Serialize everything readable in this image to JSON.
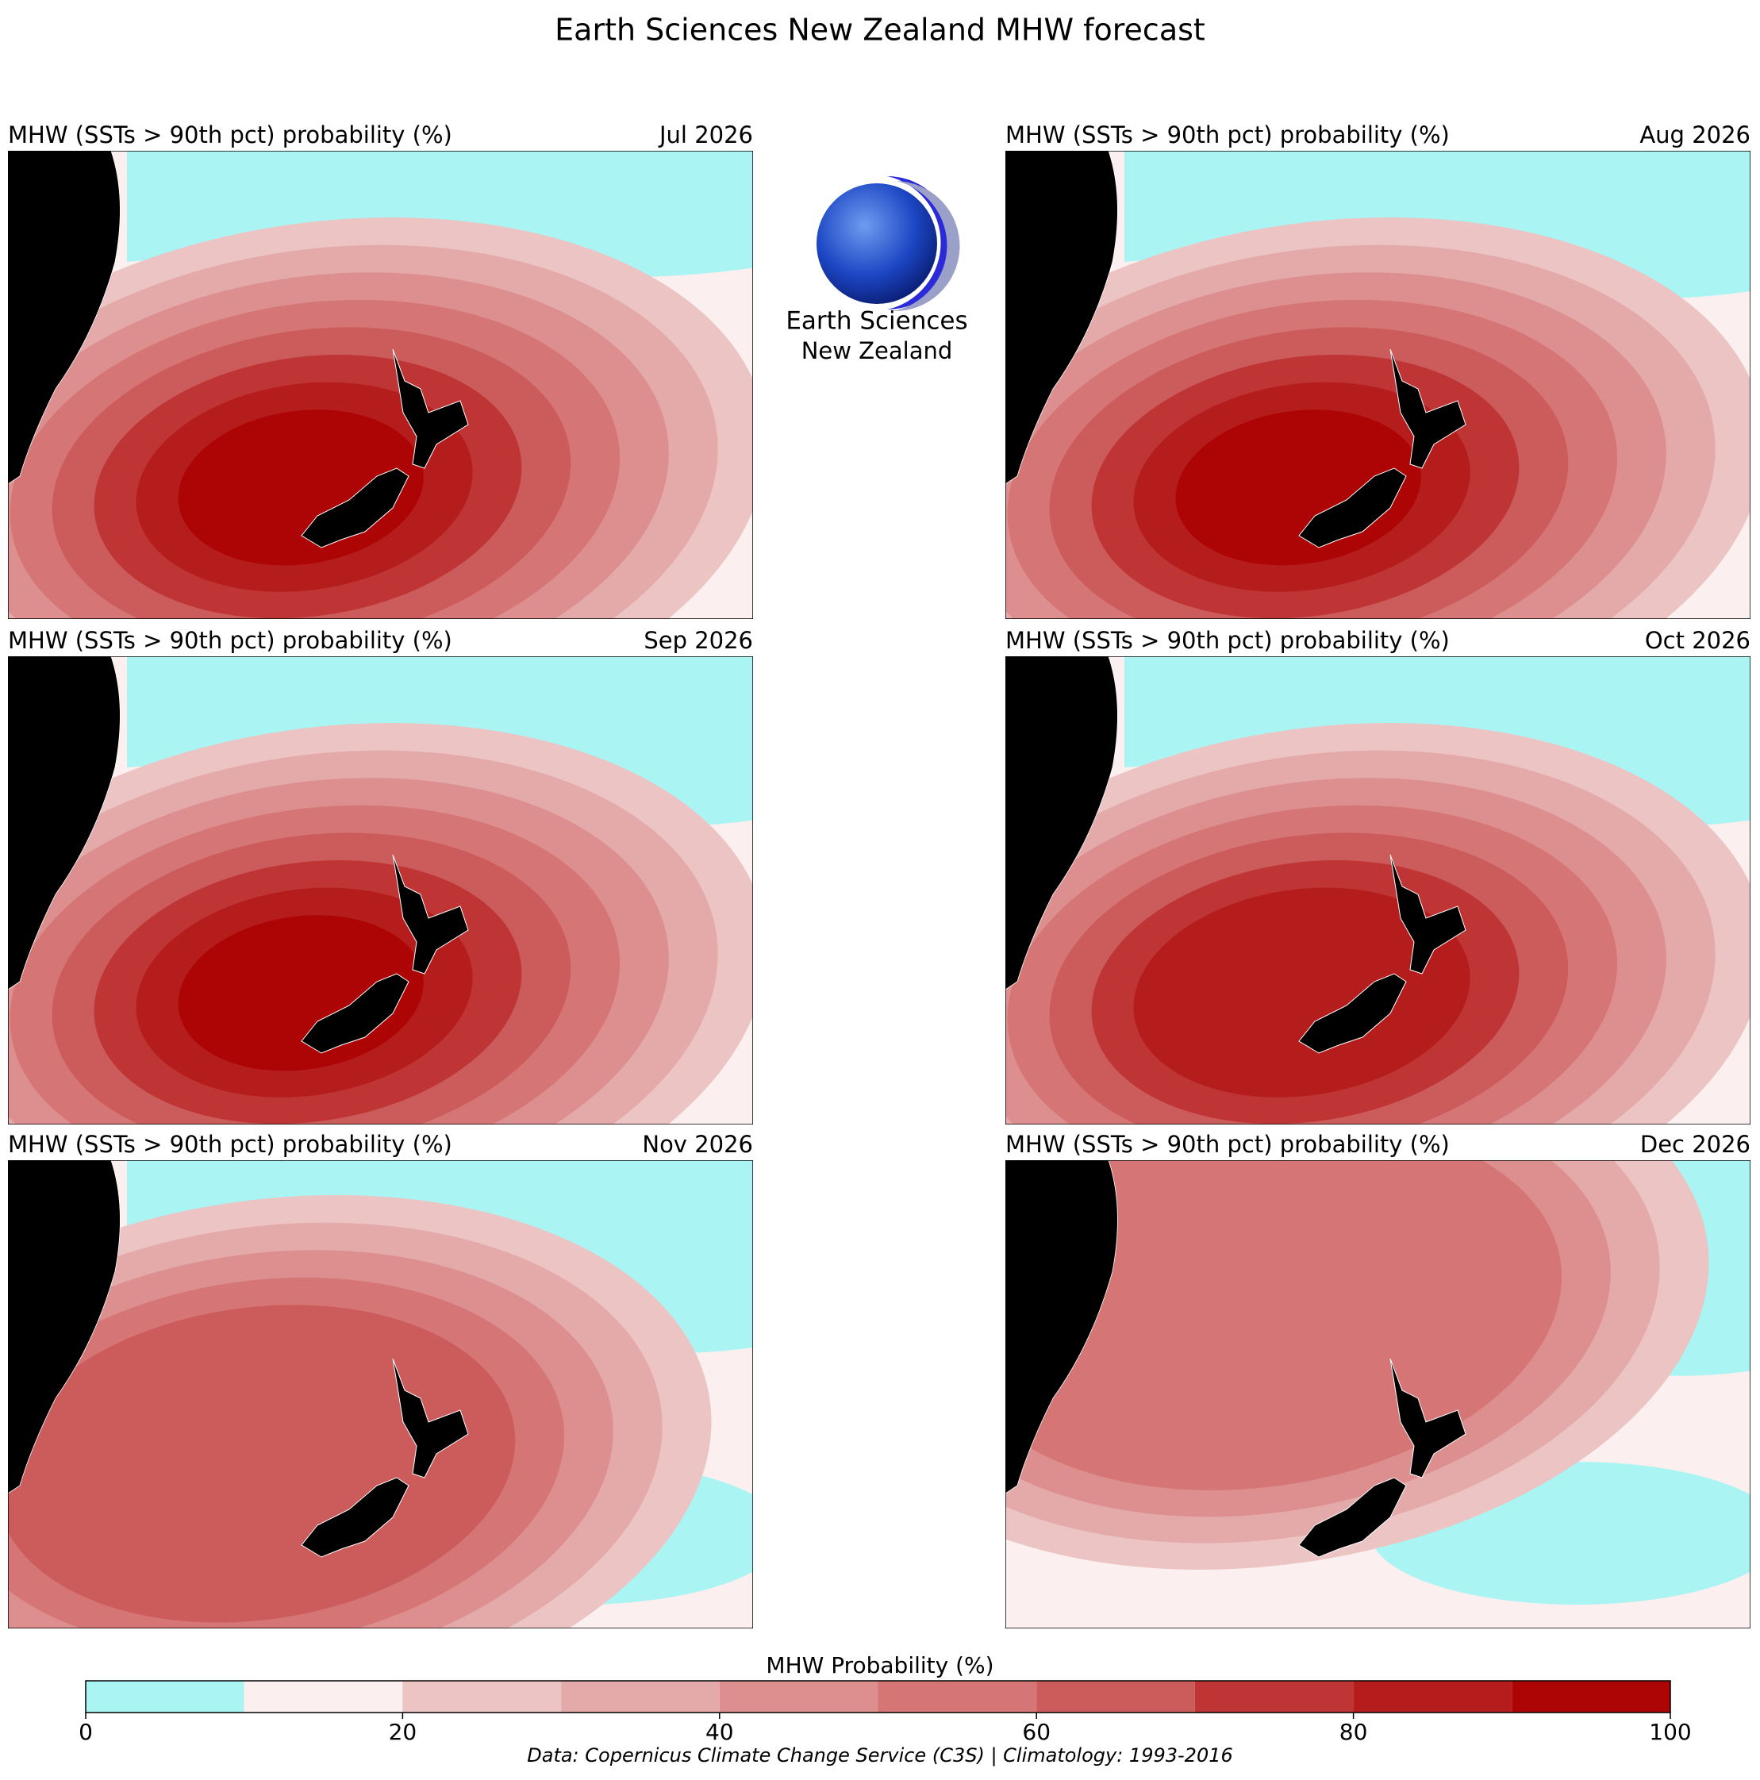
{
  "title": "Earth Sciences New Zealand MHW forecast",
  "logo": {
    "line1": "Earth Sciences",
    "line2": "New Zealand"
  },
  "panels": [
    {
      "title": "MHW (SSTs > 90th pct) probability (%)",
      "month": "Jul 2026"
    },
    {
      "title": "MHW (SSTs > 90th pct) probability (%)",
      "month": "Aug 2026"
    },
    {
      "title": "MHW (SSTs > 90th pct) probability (%)",
      "month": "Sep 2026"
    },
    {
      "title": "MHW (SSTs > 90th pct) probability (%)",
      "month": "Oct 2026"
    },
    {
      "title": "MHW (SSTs > 90th pct) probability (%)",
      "month": "Nov 2026"
    },
    {
      "title": "MHW (SSTs > 90th pct) probability (%)",
      "month": "Dec 2026"
    }
  ],
  "colorbar": {
    "label": "MHW Probability (%)",
    "levels": [
      0,
      10,
      20,
      30,
      40,
      50,
      60,
      70,
      80,
      90,
      100
    ],
    "colors": [
      "#aaf5f3",
      "#fbefef",
      "#ecc4c4",
      "#e4a9a9",
      "#dd8f8f",
      "#d57575",
      "#cc5b5b",
      "#bf3434",
      "#b51d1d",
      "#ad0505"
    ],
    "lim": [
      0,
      100
    ],
    "ticks": [
      0,
      20,
      40,
      60,
      80,
      100
    ]
  },
  "footer": "Data: Copernicus Climate Change Service (C3S) | Climatology: 1993-2016"
}
